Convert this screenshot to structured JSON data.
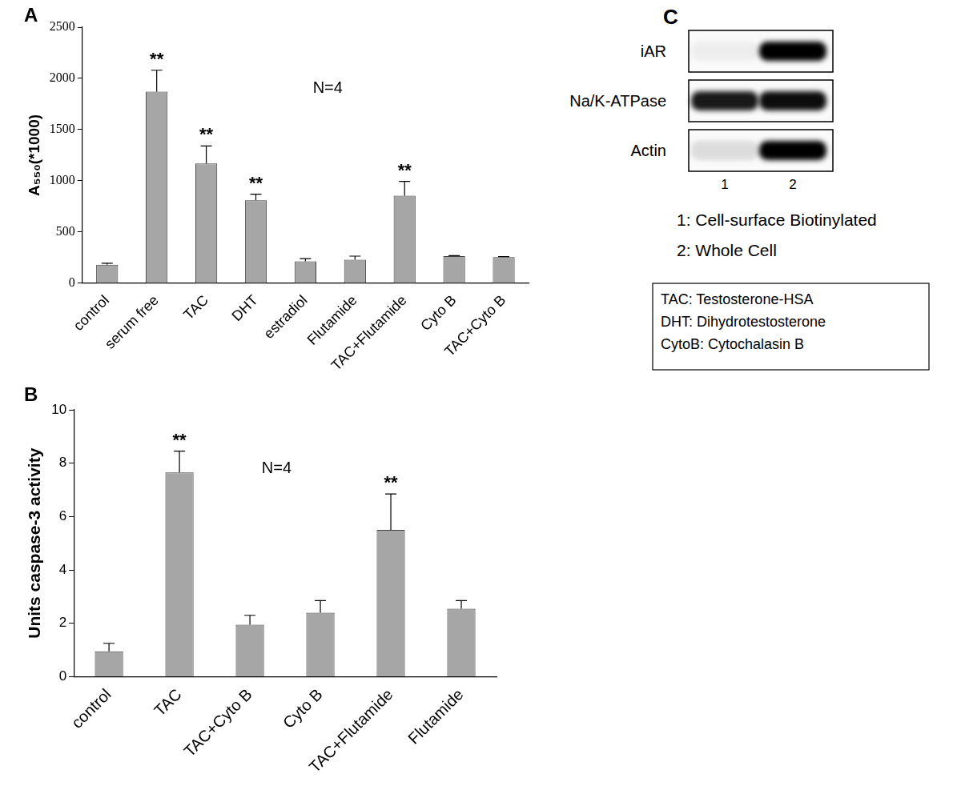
{
  "chart_data": [
    {
      "type": "bar",
      "title": "A",
      "annotation": "N=4",
      "y_label": "A₅₅₀(*1000)",
      "categories": [
        "control",
        "serum free",
        "TAC",
        "DHT",
        "estradiol",
        "Flutamide",
        "TAC+Flutamide",
        "Cyto B",
        "TAC+Cyto B"
      ],
      "values": [
        180,
        1870,
        1170,
        810,
        215,
        230,
        855,
        265,
        255
      ],
      "errors": [
        15,
        210,
        170,
        60,
        25,
        35,
        140,
        5,
        5
      ],
      "significance": [
        null,
        "**",
        "**",
        "**",
        null,
        null,
        "**",
        null,
        null
      ],
      "color": "#a6a6a6",
      "ylim": [
        0,
        2500
      ],
      "yticks": [
        0,
        500,
        1000,
        1500,
        2000,
        2500
      ],
      "grid": false
    },
    {
      "type": "bar",
      "title": "B",
      "annotation": "N=4",
      "y_label": "Units caspase-3 activity",
      "categories": [
        "control",
        "TAC",
        "TAC+Cyto B",
        "Cyto B",
        "TAC+Flutamide",
        "Flutamide"
      ],
      "values": [
        0.95,
        7.65,
        1.95,
        2.4,
        5.5,
        2.55
      ],
      "errors": [
        0.3,
        0.8,
        0.35,
        0.45,
        1.35,
        0.3
      ],
      "significance": [
        null,
        "**",
        null,
        null,
        "**",
        null
      ],
      "color": "#a6a6a6",
      "ylim": [
        0,
        10
      ],
      "yticks": [
        0,
        2,
        4,
        6,
        8,
        10
      ],
      "grid": false
    }
  ],
  "blot": {
    "title": "C",
    "rows": [
      {
        "label": "iAR",
        "intensities": [
          0.05,
          1.0
        ]
      },
      {
        "label": "Na/K-ATPase",
        "intensities": [
          0.9,
          0.95
        ]
      },
      {
        "label": "Actin",
        "intensities": [
          0.12,
          1.0
        ]
      }
    ],
    "lanes": [
      "1",
      "2"
    ],
    "lane_legend": [
      "1: Cell-surface Biotinylated",
      "2: Whole Cell"
    ]
  },
  "abbreviations": [
    "TAC: Testosterone-HSA",
    "DHT: Dihydrotestosterone",
    "CytoB: Cytochalasin B"
  ]
}
